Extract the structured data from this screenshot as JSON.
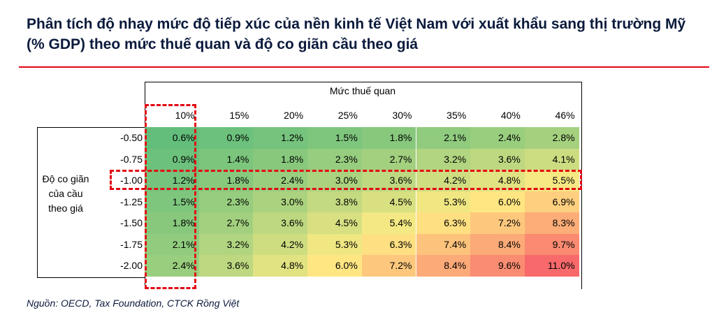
{
  "title": "Phân tích độ nhạy mức độ tiếp xúc của nền kinh tế Việt Nam với xuất khẩu sang thị trường Mỹ (% GDP) theo mức thuế quan và độ co giãn cầu theo giá",
  "source": "Nguồn: OECD, Tax Foundation, CTCK Rồng Việt",
  "chart_data": {
    "type": "heatmap",
    "column_axis_title": "Mức thuế quan",
    "row_axis_title": "Độ co giãn của cầu theo giá",
    "columns": [
      "10%",
      "15%",
      "20%",
      "25%",
      "30%",
      "35%",
      "40%",
      "46%"
    ],
    "rows": [
      "-0.50",
      "-0.75",
      "-1.00",
      "-1.25",
      "-1.50",
      "-1.75",
      "-2.00"
    ],
    "values": [
      [
        "0.6%",
        "0.9%",
        "1.2%",
        "1.5%",
        "1.8%",
        "2.1%",
        "2.4%",
        "2.8%"
      ],
      [
        "0.9%",
        "1.4%",
        "1.8%",
        "2.3%",
        "2.7%",
        "3.2%",
        "3.6%",
        "4.1%"
      ],
      [
        "1.2%",
        "1.8%",
        "2.4%",
        "3.0%",
        "3.6%",
        "4.2%",
        "4.8%",
        "5.5%"
      ],
      [
        "1.5%",
        "2.3%",
        "3.0%",
        "3.8%",
        "4.5%",
        "5.3%",
        "6.0%",
        "6.9%"
      ],
      [
        "1.8%",
        "2.7%",
        "3.6%",
        "4.5%",
        "5.4%",
        "6.3%",
        "7.2%",
        "8.3%"
      ],
      [
        "2.1%",
        "3.2%",
        "4.2%",
        "5.3%",
        "6.3%",
        "7.4%",
        "8.4%",
        "9.7%"
      ],
      [
        "2.4%",
        "3.6%",
        "4.8%",
        "6.0%",
        "7.2%",
        "8.4%",
        "9.6%",
        "11.0%"
      ]
    ],
    "color_scale": [
      "#63be7b",
      "#ffeb84",
      "#f8696b"
    ],
    "highlighted_column": "10%",
    "highlighted_row": "-1.00",
    "highlight_color": "#e30613"
  }
}
